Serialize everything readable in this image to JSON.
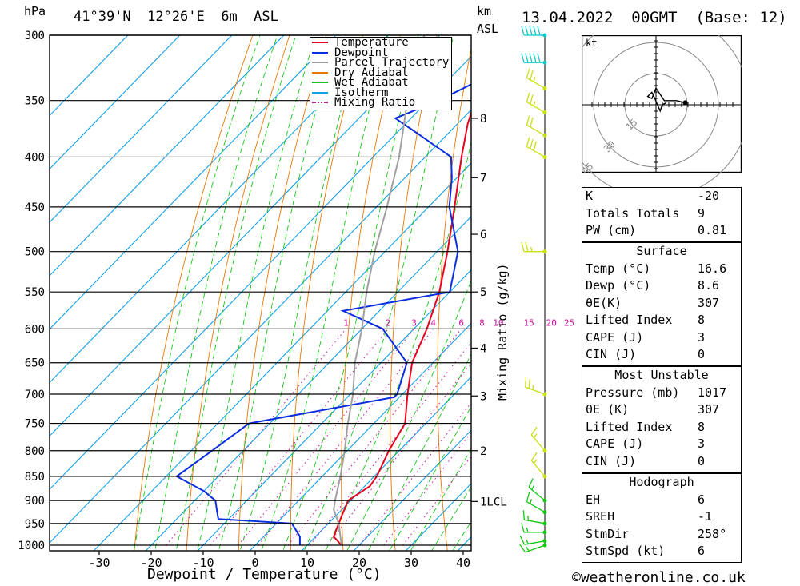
{
  "header": {
    "pressure_unit": "hPa",
    "location": "41°39'N  12°26'E  6m  ASL",
    "km_label": "km",
    "asl_label": "ASL",
    "datetime": "13.04.2022  00GMT  (Base: 12)"
  },
  "footer": {
    "copyright": "©weatheronline.co.uk"
  },
  "chart_data": {
    "type": "skew-t",
    "xlabel": "Dewpoint / Temperature (°C)",
    "y2label": "Mixing Ratio (g/kg)",
    "xlim": [
      -40,
      40
    ],
    "ylim_hpa": [
      1000,
      300
    ],
    "x_ticks": [
      -30,
      -20,
      -10,
      0,
      10,
      20,
      30,
      40
    ],
    "pressure_levels": [
      300,
      350,
      400,
      450,
      500,
      550,
      600,
      650,
      700,
      750,
      800,
      850,
      900,
      950,
      1000
    ],
    "height_km": [
      {
        "km": "8",
        "p": 365
      },
      {
        "km": "7",
        "p": 420
      },
      {
        "km": "6",
        "p": 480
      },
      {
        "km": "5",
        "p": 550
      },
      {
        "km": "4",
        "p": 628
      },
      {
        "km": "3",
        "p": 703
      },
      {
        "km": "2",
        "p": 800
      },
      {
        "km": "1LCL",
        "p": 902
      }
    ],
    "mixing_ratio_labels": [
      "1",
      "2",
      "3",
      "4",
      "6",
      "8",
      "10",
      "15",
      "20",
      "25"
    ],
    "legend": [
      {
        "name": "Temperature",
        "color": "#e8001c"
      },
      {
        "name": "Dewpoint",
        "color": "#0b2de0"
      },
      {
        "name": "Parcel Trajectory",
        "color": "#a0a0a0"
      },
      {
        "name": "Dry Adiabat",
        "color": "#e87800"
      },
      {
        "name": "Wet Adiabat",
        "color": "#12c812"
      },
      {
        "name": "Isotherm",
        "color": "#12a0e8"
      },
      {
        "name": "Mixing Ratio",
        "color": "#d010a0"
      }
    ],
    "series": [
      {
        "name": "Temperature",
        "color": "#e8001c",
        "points": [
          [
            1000,
            16.6
          ],
          [
            980,
            13.5
          ],
          [
            950,
            12
          ],
          [
            930,
            11
          ],
          [
            900,
            9.5
          ],
          [
            870,
            11
          ],
          [
            850,
            10.5
          ],
          [
            800,
            8
          ],
          [
            750,
            6
          ],
          [
            700,
            1
          ],
          [
            650,
            -4
          ],
          [
            600,
            -7.5
          ],
          [
            550,
            -12
          ],
          [
            500,
            -18
          ],
          [
            450,
            -25
          ],
          [
            400,
            -33
          ],
          [
            370,
            -38
          ],
          [
            350,
            -41
          ],
          [
            320,
            -45
          ],
          [
            300,
            -49
          ]
        ]
      },
      {
        "name": "Dewpoint",
        "color": "#0b2de0",
        "points": [
          [
            1000,
            8.6
          ],
          [
            980,
            7
          ],
          [
            950,
            3
          ],
          [
            940,
            -12
          ],
          [
            920,
            -14
          ],
          [
            900,
            -16
          ],
          [
            880,
            -20
          ],
          [
            850,
            -28
          ],
          [
            800,
            -26
          ],
          [
            750,
            -24
          ],
          [
            705,
            -1
          ],
          [
            700,
            -1
          ],
          [
            650,
            -5
          ],
          [
            600,
            -16
          ],
          [
            575,
            -27
          ],
          [
            550,
            -10
          ],
          [
            500,
            -16
          ],
          [
            450,
            -26
          ],
          [
            420,
            -31
          ],
          [
            400,
            -35
          ],
          [
            380,
            -45
          ],
          [
            365,
            -53
          ],
          [
            350,
            -48
          ],
          [
            330,
            -43
          ],
          [
            310,
            -46
          ],
          [
            300,
            -49
          ]
        ]
      },
      {
        "name": "Parcel Trajectory",
        "color": "#a0a0a0",
        "points": [
          [
            1000,
            16.6
          ],
          [
            950,
            12
          ],
          [
            920,
            8.5
          ],
          [
            900,
            7
          ],
          [
            850,
            3.5
          ],
          [
            800,
            -0.5
          ],
          [
            750,
            -5
          ],
          [
            700,
            -9.5
          ],
          [
            650,
            -15
          ],
          [
            600,
            -20
          ],
          [
            550,
            -26
          ],
          [
            500,
            -32
          ],
          [
            450,
            -38
          ],
          [
            400,
            -45
          ],
          [
            350,
            -54
          ],
          [
            300,
            -63
          ]
        ]
      }
    ],
    "wind_barbs_kt": [
      {
        "p": 1000,
        "dir": 250,
        "spd": 5
      },
      {
        "p": 990,
        "dir": 260,
        "spd": 5
      },
      {
        "p": 970,
        "dir": 270,
        "spd": 5
      },
      {
        "p": 950,
        "dir": 280,
        "spd": 5
      },
      {
        "p": 925,
        "dir": 300,
        "spd": 5
      },
      {
        "p": 900,
        "dir": 310,
        "spd": 5
      },
      {
        "p": 850,
        "dir": 320,
        "spd": 5
      },
      {
        "p": 800,
        "dir": 320,
        "spd": 5
      },
      {
        "p": 700,
        "dir": 290,
        "spd": 15
      },
      {
        "p": 500,
        "dir": 270,
        "spd": 15
      },
      {
        "p": 400,
        "dir": 300,
        "spd": 30
      },
      {
        "p": 380,
        "dir": 300,
        "spd": 20
      },
      {
        "p": 360,
        "dir": 300,
        "spd": 15
      },
      {
        "p": 340,
        "dir": 300,
        "spd": 15
      },
      {
        "p": 320,
        "dir": 270,
        "spd": 50
      },
      {
        "p": 300,
        "dir": 270,
        "spd": 50
      }
    ],
    "hodograph": {
      "unit": "kt",
      "rings": [
        "15",
        "30",
        "45"
      ],
      "points_kt": [
        [
          5,
          1
        ],
        [
          3,
          0
        ],
        [
          2,
          -3
        ],
        [
          -1,
          4
        ],
        [
          -2,
          6
        ],
        [
          -4,
          4
        ],
        [
          -2,
          3
        ],
        [
          0,
          8
        ],
        [
          4,
          2
        ],
        [
          10,
          2
        ],
        [
          14,
          1
        ]
      ]
    }
  },
  "indices": {
    "basic": [
      {
        "label": "K",
        "value": "-20"
      },
      {
        "label": "Totals Totals",
        "value": "9"
      },
      {
        "label": "PW (cm)",
        "value": "0.81"
      }
    ],
    "surface": {
      "title": "Surface",
      "rows": [
        {
          "label": "Temp (°C)",
          "value": "16.6"
        },
        {
          "label": "Dewp (°C)",
          "value": "8.6"
        },
        {
          "label": "θE(K)",
          "value": "307"
        },
        {
          "label": "Lifted Index",
          "value": "8"
        },
        {
          "label": "CAPE (J)",
          "value": "3"
        },
        {
          "label": "CIN (J)",
          "value": "0"
        }
      ]
    },
    "most_unstable": {
      "title": "Most Unstable",
      "rows": [
        {
          "label": "Pressure (mb)",
          "value": "1017"
        },
        {
          "label": "θE (K)",
          "value": "307"
        },
        {
          "label": "Lifted Index",
          "value": "8"
        },
        {
          "label": "CAPE (J)",
          "value": "3"
        },
        {
          "label": "CIN (J)",
          "value": "0"
        }
      ]
    },
    "hodograph": {
      "title": "Hodograph",
      "rows": [
        {
          "label": "EH",
          "value": "6"
        },
        {
          "label": "SREH",
          "value": "-1"
        },
        {
          "label": "StmDir",
          "value": "258°"
        },
        {
          "label": "StmSpd (kt)",
          "value": "6"
        }
      ]
    }
  }
}
